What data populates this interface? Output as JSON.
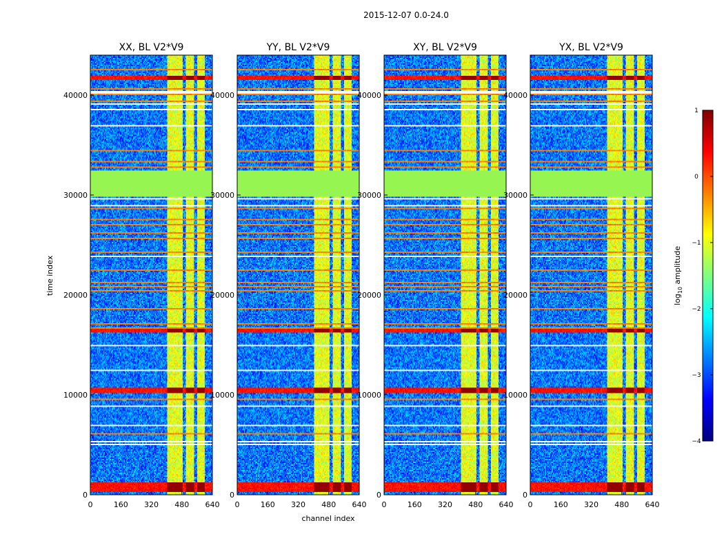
{
  "figure": {
    "suptitle": "2015-12-07 0.0-24.0",
    "colorbar_label_main": "log",
    "colorbar_label_sub": "10",
    "colorbar_label_rest": " amplitude"
  },
  "chart_data": {
    "type": "heatmap",
    "colormap": "jet",
    "panels": [
      {
        "title": "XX, BL V2*V9",
        "id": "xx"
      },
      {
        "title": "YY, BL V2*V9",
        "id": "yy"
      },
      {
        "title": "XY, BL V2*V9",
        "id": "xy"
      },
      {
        "title": "YX, BL V2*V9",
        "id": "yx"
      }
    ],
    "xlabel": "channel index",
    "ylabel": "time index",
    "xlim": [
      0,
      640
    ],
    "ylim": [
      0,
      44000
    ],
    "xticks": [
      0,
      160,
      320,
      480,
      640
    ],
    "xtick_labels": [
      "0",
      "160",
      "320",
      "480",
      "640"
    ],
    "yticks": [
      0,
      10000,
      20000,
      30000,
      40000
    ],
    "ytick_labels": [
      "0",
      "10000",
      "20000",
      "30000",
      "40000"
    ],
    "colorbar": {
      "range": [
        -4,
        1
      ],
      "ticks": [
        1,
        0,
        -1,
        -2,
        -3,
        -4
      ],
      "tick_labels": [
        "1",
        "0",
        "−1",
        "−2",
        "−3",
        "−4"
      ]
    },
    "features": {
      "background_level": -2.8,
      "flagged_time_range": [
        29800,
        32400
      ],
      "flagged_level": -1.4,
      "rfi_channel_bands": [
        [
          405,
          460
        ],
        [
          460,
          485
        ],
        [
          500,
          545
        ],
        [
          560,
          600
        ]
      ],
      "strong_time_bands": [
        [
          300,
          1200
        ],
        [
          10200,
          10700
        ],
        [
          16200,
          16600
        ],
        [
          41500,
          41900
        ]
      ]
    }
  },
  "colors": {
    "flagged": "#96f550",
    "background": "#1e5ae6",
    "rfi": "#c8f040"
  }
}
